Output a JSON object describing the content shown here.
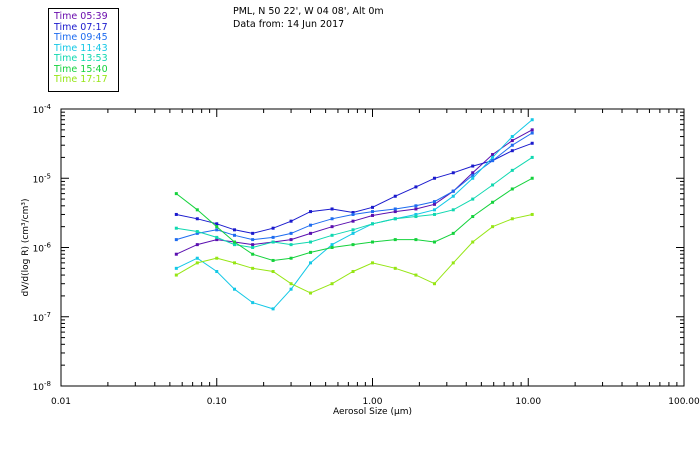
{
  "header": {
    "title": "PML, N 50 22', W 04 08', Alt 0m",
    "subtitle": "Data from: 14 Jun 2017"
  },
  "legend": [
    {
      "label": "Time 05:39",
      "color": "#6a0dad"
    },
    {
      "label": "Time 07:17",
      "color": "#1a1acd"
    },
    {
      "label": "Time 09:45",
      "color": "#1e6cf0"
    },
    {
      "label": "Time 11:43",
      "color": "#14c8e6"
    },
    {
      "label": "Time 13:53",
      "color": "#10d8b0"
    },
    {
      "label": "Time 15:40",
      "color": "#14d23c"
    },
    {
      "label": "Time 17:17",
      "color": "#96e614"
    }
  ],
  "chart_data": {
    "type": "line",
    "title": "PML, N 50 22', W 04 08', Alt 0m",
    "xlabel": "Aerosol Size (μm)",
    "ylabel": "dV/d(log R) (cm³/cm³)",
    "xscale": "log",
    "yscale": "log",
    "xlim": [
      0.01,
      100.0
    ],
    "ylim": [
      1e-08,
      0.0001
    ],
    "xticks": [
      "0.01",
      "0.10",
      "1.00",
      "10.00",
      "100.00"
    ],
    "yticks": [
      {
        "mant": "10",
        "exp": "-8",
        "value": 1e-08
      },
      {
        "mant": "10",
        "exp": "-7",
        "value": 1e-07
      },
      {
        "mant": "10",
        "exp": "-6",
        "value": 1e-06
      },
      {
        "mant": "10",
        "exp": "-5",
        "value": 1e-05
      },
      {
        "mant": "10",
        "exp": "-4",
        "value": 0.0001
      }
    ],
    "x": [
      0.055,
      0.075,
      0.1,
      0.13,
      0.17,
      0.23,
      0.3,
      0.4,
      0.55,
      0.75,
      1.0,
      1.4,
      1.9,
      2.5,
      3.3,
      4.4,
      5.9,
      7.9,
      10.6
    ],
    "series": [
      {
        "name": "Time 05:39",
        "color": "#5a0fb0",
        "values": [
          8e-07,
          1.1e-06,
          1.3e-06,
          1.2e-06,
          1.1e-06,
          1.2e-06,
          1.3e-06,
          1.6e-06,
          2e-06,
          2.4e-06,
          2.9e-06,
          3.3e-06,
          3.6e-06,
          4.2e-06,
          6.5e-06,
          1.2e-05,
          2.2e-05,
          3.5e-05,
          5e-05
        ]
      },
      {
        "name": "Time 07:17",
        "color": "#1a1acd",
        "values": [
          3e-06,
          2.6e-06,
          2.2e-06,
          1.8e-06,
          1.6e-06,
          1.9e-06,
          2.4e-06,
          3.3e-06,
          3.6e-06,
          3.2e-06,
          3.8e-06,
          5.5e-06,
          7.5e-06,
          1e-05,
          1.2e-05,
          1.5e-05,
          1.8e-05,
          2.5e-05,
          3.2e-05
        ]
      },
      {
        "name": "Time 09:45",
        "color": "#1e6cf0",
        "values": [
          1.3e-06,
          1.6e-06,
          1.8e-06,
          1.5e-06,
          1.3e-06,
          1.4e-06,
          1.6e-06,
          2.1e-06,
          2.6e-06,
          3e-06,
          3.3e-06,
          3.6e-06,
          4e-06,
          4.6e-06,
          6.5e-06,
          1.1e-05,
          1.8e-05,
          3e-05,
          4.5e-05
        ]
      },
      {
        "name": "Time 11:43",
        "color": "#14c8e6",
        "values": [
          5e-07,
          7e-07,
          4.5e-07,
          2.5e-07,
          1.6e-07,
          1.3e-07,
          2.5e-07,
          6e-07,
          1.1e-06,
          1.6e-06,
          2.2e-06,
          2.6e-06,
          3e-06,
          3.5e-06,
          5.5e-06,
          1e-05,
          2e-05,
          4e-05,
          7e-05
        ]
      },
      {
        "name": "Time 13:53",
        "color": "#10d8b0",
        "values": [
          1.9e-06,
          1.7e-06,
          1.4e-06,
          1.1e-06,
          1e-06,
          1.2e-06,
          1.1e-06,
          1.2e-06,
          1.5e-06,
          1.8e-06,
          2.2e-06,
          2.6e-06,
          2.8e-06,
          3e-06,
          3.5e-06,
          5e-06,
          8e-06,
          1.3e-05,
          2e-05
        ]
      },
      {
        "name": "Time 15:40",
        "color": "#14d23c",
        "values": [
          6e-06,
          3.5e-06,
          2e-06,
          1.2e-06,
          8e-07,
          6.5e-07,
          7e-07,
          8.5e-07,
          1e-06,
          1.1e-06,
          1.2e-06,
          1.3e-06,
          1.3e-06,
          1.2e-06,
          1.6e-06,
          2.8e-06,
          4.5e-06,
          7e-06,
          1e-05
        ]
      },
      {
        "name": "Time 17:17",
        "color": "#96e614",
        "values": [
          4e-07,
          6e-07,
          7e-07,
          6e-07,
          5e-07,
          4.5e-07,
          3e-07,
          2.2e-07,
          3e-07,
          4.5e-07,
          6e-07,
          5e-07,
          4e-07,
          3e-07,
          6e-07,
          1.2e-06,
          2e-06,
          2.6e-06,
          3e-06
        ]
      }
    ]
  }
}
